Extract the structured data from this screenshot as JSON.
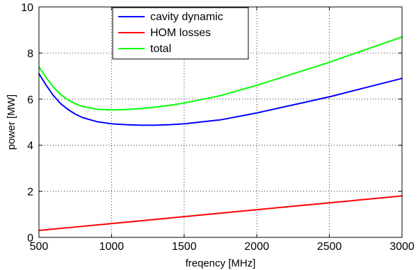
{
  "chart_data": {
    "type": "line",
    "xlabel": "freqency [MHz]",
    "ylabel": "power [MW]",
    "xlim": [
      500,
      3000
    ],
    "ylim": [
      0,
      10
    ],
    "xticks": [
      500,
      1000,
      1500,
      2000,
      2500,
      3000
    ],
    "yticks": [
      0,
      2,
      4,
      6,
      8,
      10
    ],
    "grid": true,
    "legend_position": "top-center",
    "x": [
      500,
      550,
      600,
      650,
      700,
      750,
      800,
      900,
      1000,
      1100,
      1200,
      1300,
      1400,
      1500,
      1750,
      2000,
      2250,
      2500,
      2750,
      3000
    ],
    "series": [
      {
        "name": "cavity dynamic",
        "color": "#0000ff",
        "values": [
          7.1,
          6.6,
          6.15,
          5.8,
          5.55,
          5.35,
          5.2,
          5.02,
          4.93,
          4.89,
          4.87,
          4.87,
          4.89,
          4.93,
          5.1,
          5.4,
          5.75,
          6.1,
          6.5,
          6.9
        ]
      },
      {
        "name": "HOM losses",
        "color": "#ff0000",
        "values": [
          0.3,
          0.33,
          0.36,
          0.39,
          0.42,
          0.45,
          0.48,
          0.54,
          0.6,
          0.66,
          0.72,
          0.78,
          0.84,
          0.9,
          1.05,
          1.2,
          1.35,
          1.5,
          1.65,
          1.8
        ]
      },
      {
        "name": "total",
        "color": "#00ff00",
        "values": [
          7.4,
          6.93,
          6.51,
          6.19,
          5.97,
          5.8,
          5.68,
          5.56,
          5.53,
          5.55,
          5.59,
          5.65,
          5.73,
          5.83,
          6.15,
          6.6,
          7.1,
          7.6,
          8.15,
          8.7
        ]
      }
    ]
  }
}
